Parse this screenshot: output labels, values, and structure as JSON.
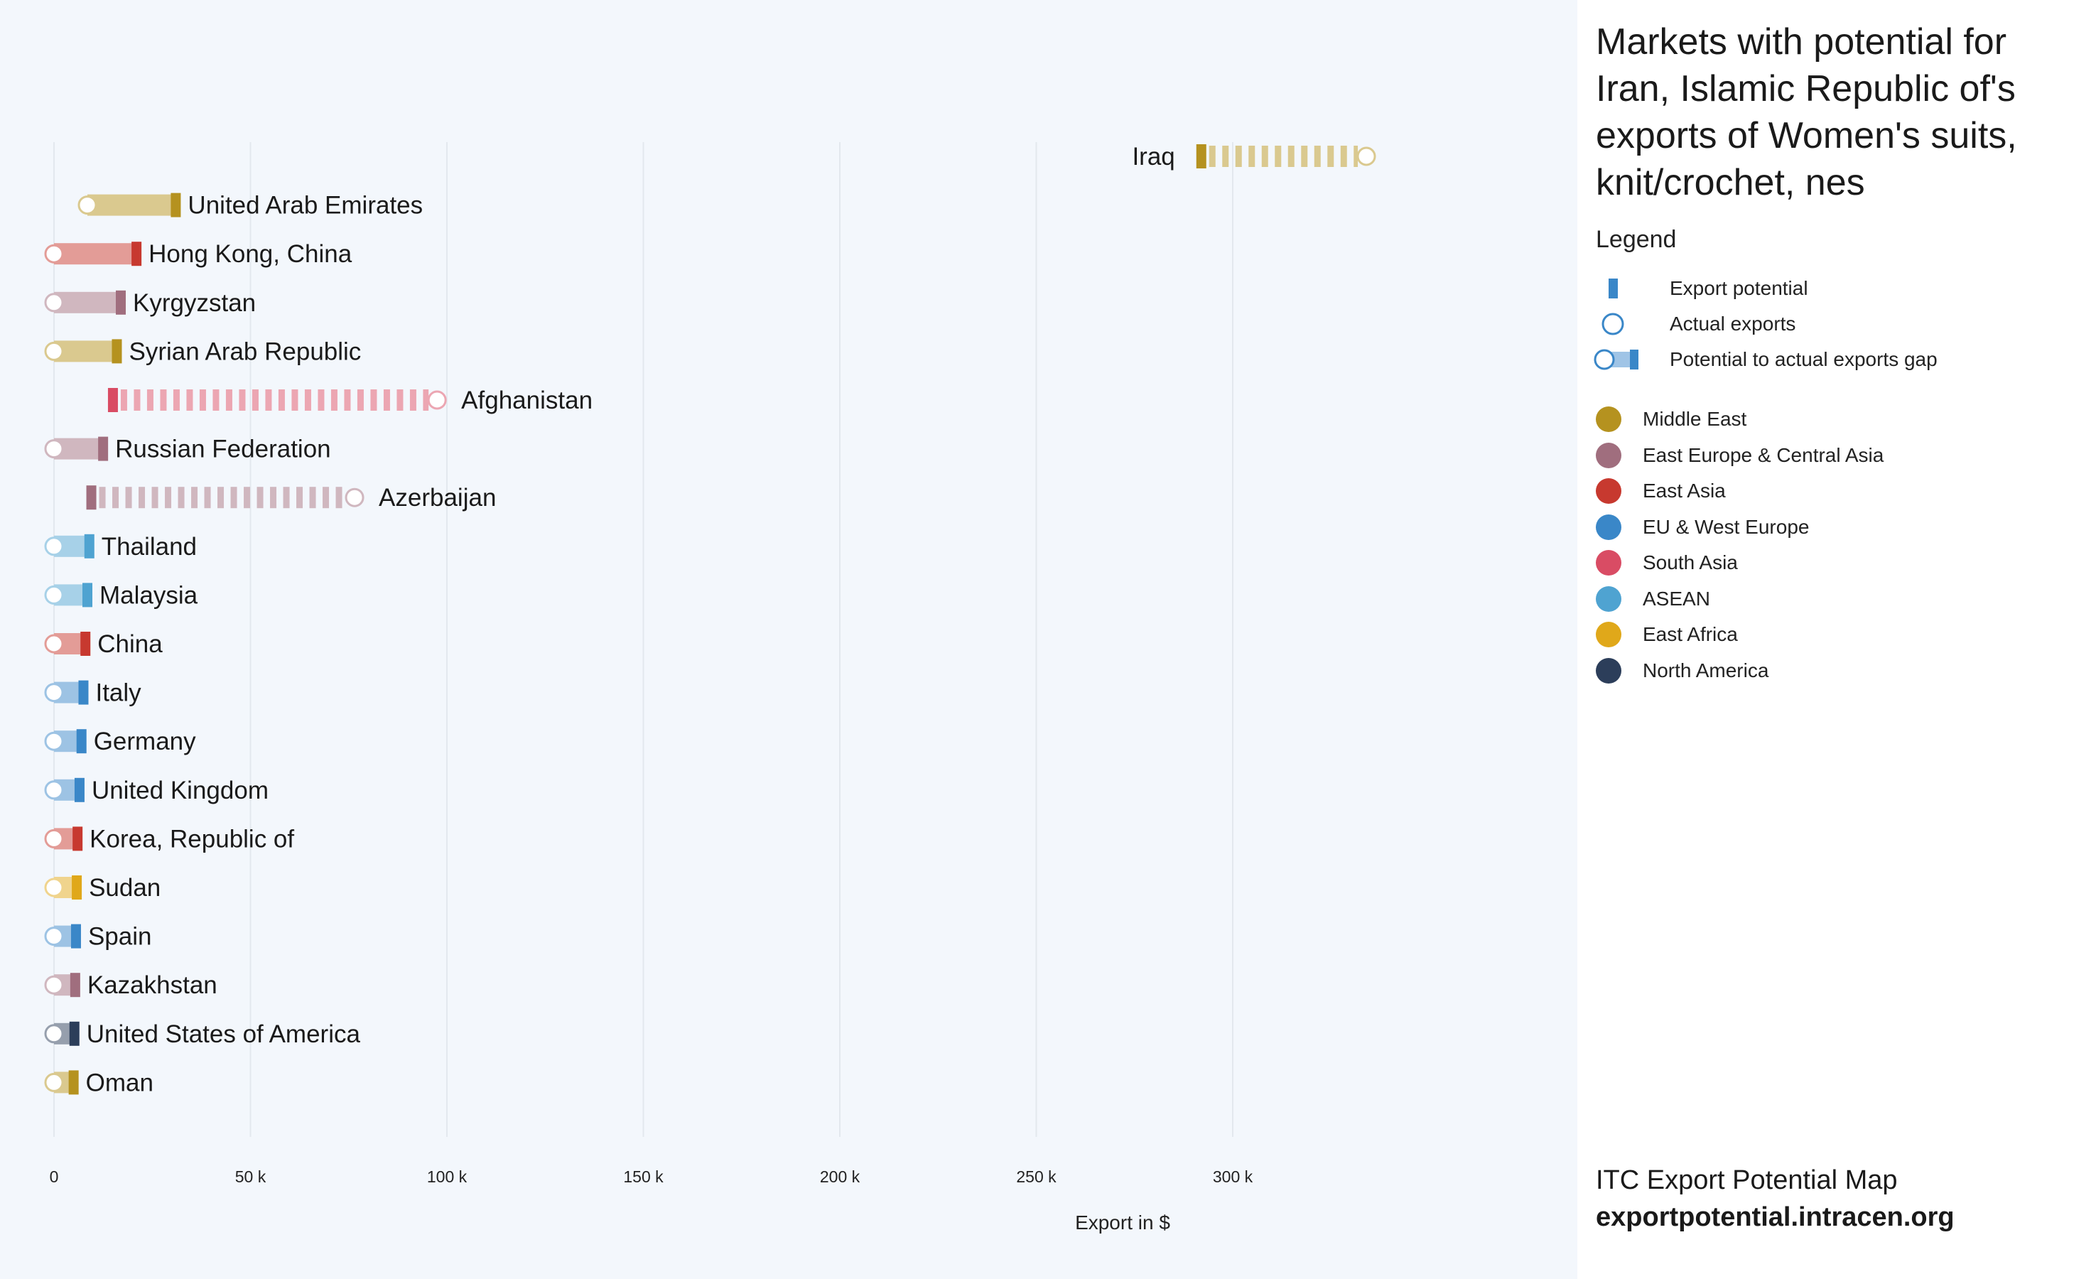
{
  "chart_data": {
    "type": "bar",
    "subtype": "dumbbell-gap",
    "title": "Markets with potential for Iran, Islamic Republic of's exports of Women's suits, knit/crochet, nes",
    "xlabel": "Export in $",
    "ylabel": "",
    "xlim": [
      0,
      345000
    ],
    "x_ticks": [
      0,
      50000,
      100000,
      150000,
      200000,
      250000,
      300000
    ],
    "x_tick_labels": [
      "0",
      "50 k",
      "100 k",
      "150 k",
      "200 k",
      "250 k",
      "300 k"
    ],
    "grid": "vertical",
    "series": [
      {
        "name": "Export potential"
      },
      {
        "name": "Actual exports"
      }
    ],
    "categories": [
      "Iraq",
      "United Arab Emirates",
      "Hong Kong, China",
      "Kyrgyzstan",
      "Syrian Arab Republic",
      "Afghanistan",
      "Russian Federation",
      "Azerbaijan",
      "Thailand",
      "Malaysia",
      "China",
      "Italy",
      "Germany",
      "United Kingdom",
      "Korea, Republic of",
      "Sudan",
      "Spain",
      "Kazakhstan",
      "United States of America",
      "Oman"
    ],
    "markets": [
      {
        "name": "Iraq",
        "region": "Middle East",
        "potential": 292000,
        "actual": 334000
      },
      {
        "name": "United Arab Emirates",
        "region": "Middle East",
        "potential": 31000,
        "actual": 8500
      },
      {
        "name": "Hong Kong, China",
        "region": "East Asia",
        "potential": 21000,
        "actual": 0
      },
      {
        "name": "Kyrgyzstan",
        "region": "East Europe & Central Asia",
        "potential": 17000,
        "actual": 0
      },
      {
        "name": "Syrian Arab Republic",
        "region": "Middle East",
        "potential": 16000,
        "actual": 0
      },
      {
        "name": "Afghanistan",
        "region": "South Asia",
        "potential": 15000,
        "actual": 97500
      },
      {
        "name": "Russian Federation",
        "region": "East Europe & Central Asia",
        "potential": 12500,
        "actual": 0
      },
      {
        "name": "Azerbaijan",
        "region": "East Europe & Central Asia",
        "potential": 9500,
        "actual": 76500
      },
      {
        "name": "Thailand",
        "region": "ASEAN",
        "potential": 9000,
        "actual": 0
      },
      {
        "name": "Malaysia",
        "region": "ASEAN",
        "potential": 8500,
        "actual": 0
      },
      {
        "name": "China",
        "region": "East Asia",
        "potential": 8000,
        "actual": 0
      },
      {
        "name": "Italy",
        "region": "EU & West Europe",
        "potential": 7500,
        "actual": 0
      },
      {
        "name": "Germany",
        "region": "EU & West Europe",
        "potential": 7000,
        "actual": 0
      },
      {
        "name": "United Kingdom",
        "region": "EU & West Europe",
        "potential": 6500,
        "actual": 0
      },
      {
        "name": "Korea, Republic of",
        "region": "East Asia",
        "potential": 6000,
        "actual": 0
      },
      {
        "name": "Sudan",
        "region": "East Africa",
        "potential": 5800,
        "actual": 0
      },
      {
        "name": "Spain",
        "region": "EU & West Europe",
        "potential": 5600,
        "actual": 0
      },
      {
        "name": "Kazakhstan",
        "region": "East Europe & Central Asia",
        "potential": 5400,
        "actual": 0
      },
      {
        "name": "United States of America",
        "region": "North America",
        "potential": 5200,
        "actual": 0
      },
      {
        "name": "Oman",
        "region": "Middle East",
        "potential": 5000,
        "actual": 0
      }
    ]
  },
  "legend": {
    "heading": "Legend",
    "items": [
      {
        "label": "Export potential",
        "icon": "potential-bar-icon"
      },
      {
        "label": "Actual exports",
        "icon": "actual-circle-icon"
      },
      {
        "label": "Potential to actual exports gap",
        "icon": "gap-bar-icon"
      }
    ],
    "regions": [
      {
        "label": "Middle East",
        "color": "#b5921f"
      },
      {
        "label": "East Europe & Central Asia",
        "color": "#a06e7e"
      },
      {
        "label": "East Asia",
        "color": "#c7392f"
      },
      {
        "label": "EU & West Europe",
        "color": "#3a87c8"
      },
      {
        "label": "South Asia",
        "color": "#d94c64"
      },
      {
        "label": "ASEAN",
        "color": "#4fa3d1"
      },
      {
        "label": "East Africa",
        "color": "#e0a81a"
      },
      {
        "label": "North America",
        "color": "#2c3e5a"
      }
    ]
  },
  "footer": {
    "line1": "ITC Export Potential Map",
    "line2": "exportpotential.intracen.org"
  }
}
